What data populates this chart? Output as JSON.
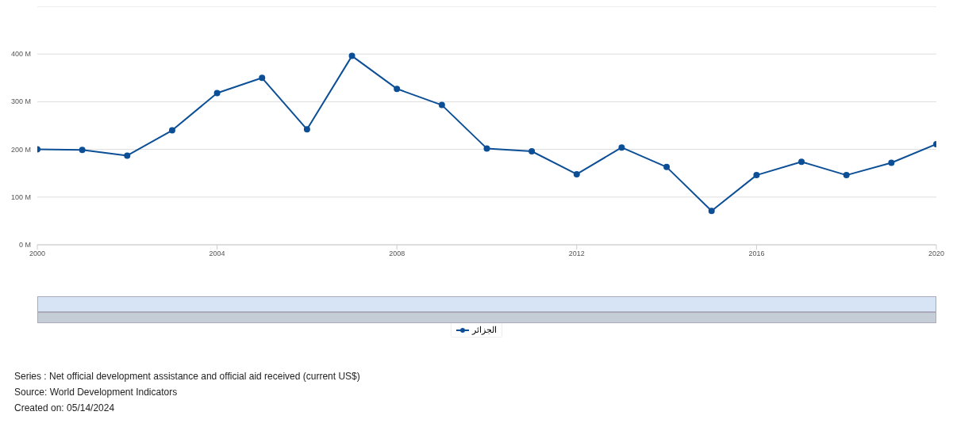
{
  "chart_data": {
    "type": "line",
    "x": [
      2000,
      2001,
      2002,
      2003,
      2004,
      2005,
      2006,
      2007,
      2008,
      2009,
      2010,
      2011,
      2012,
      2013,
      2014,
      2015,
      2016,
      2017,
      2018,
      2019,
      2020
    ],
    "series": [
      {
        "name": "الجزائر",
        "color": "#0d4f96",
        "values": [
          200,
          199,
          187,
          240,
          318,
          350,
          242,
          396,
          327,
          293,
          202,
          196,
          148,
          204,
          163,
          71,
          146,
          174,
          146,
          172,
          211
        ]
      }
    ],
    "xlim": [
      2000,
      2020
    ],
    "xticks": [
      2000,
      2004,
      2008,
      2012,
      2016,
      2020
    ],
    "ylim": [
      0,
      500
    ],
    "yticks": [
      {
        "value": 0,
        "label": "0 M"
      },
      {
        "value": 100,
        "label": "100 M"
      },
      {
        "value": 200,
        "label": "200 M"
      },
      {
        "value": 300,
        "label": "300 M"
      },
      {
        "value": 400,
        "label": "400 M"
      },
      {
        "value": 500,
        "label": null
      }
    ],
    "grid": "y",
    "legend": "bottom",
    "marker": "circle",
    "line_style": "solid",
    "annotations": [
      "Series : Net official development assistance and official aid received (current US$)",
      "Source: World Development Indicators",
      "Created on: 05/14/2024"
    ]
  }
}
